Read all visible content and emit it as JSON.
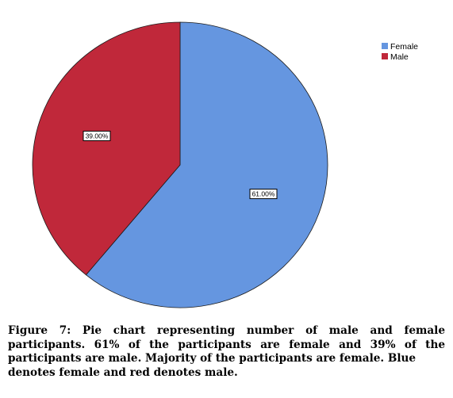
{
  "chart_data": {
    "type": "pie",
    "categories": [
      "Female",
      "Male"
    ],
    "values": [
      61.0,
      39.0
    ],
    "labels": [
      "61.00%",
      "39.00%"
    ],
    "colors": [
      "#6596E0",
      "#C0283A"
    ],
    "legend": {
      "position": "top-right",
      "entries": [
        "Female",
        "Male"
      ]
    }
  },
  "caption": {
    "lines": [
      "Figure 7: Pie chart representing number of male and female",
      "participants. 61% of the participants are female and 39% of the",
      "participants are male. Majority of the participants are female. Blue",
      "denotes female and red denotes male."
    ]
  }
}
